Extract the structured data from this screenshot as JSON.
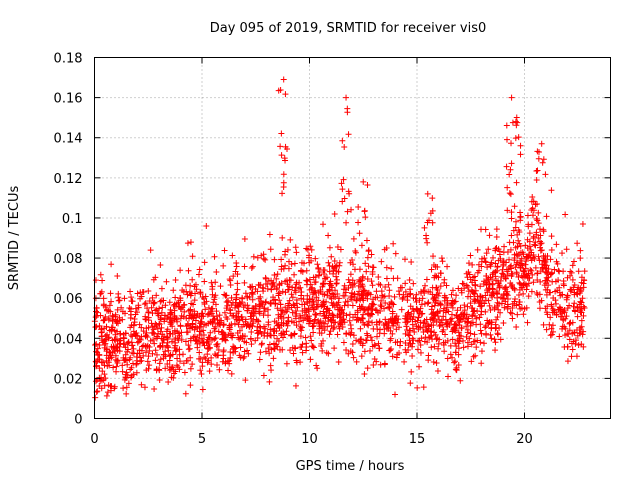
{
  "chart_data": {
    "type": "scatter",
    "title": "Day 095 of 2019, SRMTID for receiver vis0",
    "xlabel": "GPS time / hours",
    "ylabel": "SRMTID / TECUs",
    "xlim": [
      0,
      24
    ],
    "ylim": [
      0,
      0.18
    ],
    "xticks": [
      0,
      5,
      10,
      15,
      20
    ],
    "xtick_labels": [
      "0",
      "5",
      "10",
      "15",
      "20"
    ],
    "yticks": [
      0,
      0.02,
      0.04,
      0.06,
      0.08,
      0.1,
      0.12,
      0.14,
      0.16,
      0.18
    ],
    "ytick_labels": [
      "0",
      "0.02",
      "0.04",
      "0.06",
      "0.08",
      "0.1",
      "0.12",
      "0.14",
      "0.16",
      "0.18"
    ],
    "grid": true,
    "marker": "+",
    "color": "#ff0000",
    "x_range_data": [
      0,
      22.8
    ],
    "baseline_trend": [
      [
        0,
        0.036
      ],
      [
        1,
        0.039
      ],
      [
        2,
        0.042
      ],
      [
        3,
        0.043
      ],
      [
        4,
        0.046
      ],
      [
        5,
        0.046
      ],
      [
        6,
        0.048
      ],
      [
        7,
        0.05
      ],
      [
        8,
        0.054
      ],
      [
        9,
        0.056
      ],
      [
        10,
        0.056
      ],
      [
        11,
        0.058
      ],
      [
        12,
        0.056
      ],
      [
        13,
        0.052
      ],
      [
        14,
        0.05
      ],
      [
        15,
        0.05
      ],
      [
        16,
        0.052
      ],
      [
        17,
        0.046
      ],
      [
        18,
        0.06
      ],
      [
        19,
        0.064
      ],
      [
        20,
        0.076
      ],
      [
        20.5,
        0.085
      ],
      [
        21,
        0.068
      ],
      [
        22,
        0.052
      ],
      [
        22.8,
        0.056
      ]
    ],
    "notable_peaks": [
      {
        "x": 8.8,
        "y": 0.169
      },
      {
        "x": 11.7,
        "y": 0.16
      },
      {
        "x": 19.4,
        "y": 0.16
      },
      {
        "x": 19.6,
        "y": 0.148
      },
      {
        "x": 20.8,
        "y": 0.137
      },
      {
        "x": 12.5,
        "y": 0.118
      },
      {
        "x": 15.5,
        "y": 0.112
      }
    ]
  }
}
